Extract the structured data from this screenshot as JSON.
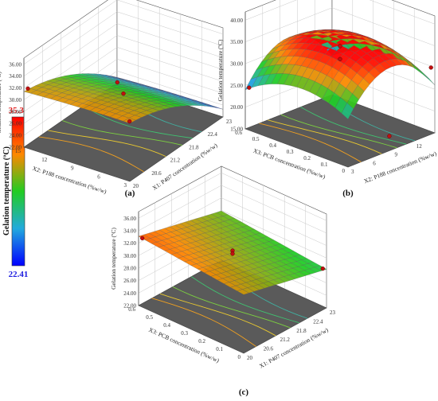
{
  "colorbar": {
    "title": "Gelation temperature (ºC)",
    "max_label": "35.33",
    "min_label": "22.41",
    "max_color": "#ff1a1a",
    "min_color": "#1a1aff"
  },
  "chart_data": [
    {
      "panel": "(a)",
      "type": "surface",
      "zlabel": "Gelation temperature (ºC)",
      "xlabel": "X1: P407 concentration (%w/w)",
      "ylabel": "X2: P188 concentration (%w/w)",
      "zticks": [
        "22.00",
        "24.00",
        "26.00",
        "28.00",
        "30.00",
        "32.00",
        "34.00",
        "36.00"
      ],
      "xticks": [
        "20",
        "20.6",
        "21.2",
        "21.8",
        "22.4",
        "23"
      ],
      "yticks": [
        "3",
        "6",
        "9",
        "12",
        "15"
      ],
      "zlim": [
        22,
        36
      ],
      "xlim": [
        20,
        23
      ],
      "ylim": [
        3,
        15
      ],
      "design_points": [
        {
          "x1": 20,
          "x2": 15,
          "temp": 31.8
        },
        {
          "x1": 20,
          "x2": 3,
          "temp": 31.8
        },
        {
          "x1": 23,
          "x2": 15,
          "temp": 22.4
        },
        {
          "x1": 21.5,
          "x2": 9,
          "temp": 28.5
        }
      ]
    },
    {
      "panel": "(b)",
      "type": "surface",
      "zlabel": "Gelation temperature (ºC)",
      "xlabel": "X2: P188 concentration (%w/w)",
      "ylabel": "X3: PCB concentration (%w/w)",
      "zticks": [
        "15.00",
        "20.00",
        "25.00",
        "30.00",
        "35.00",
        "40.00"
      ],
      "xticks": [
        "3",
        "6",
        "9",
        "12",
        "15"
      ],
      "yticks": [
        "0",
        "0.1",
        "0.2",
        "0.3",
        "0.4",
        "0.5",
        "0.6"
      ],
      "zlim": [
        15,
        40
      ],
      "xlim": [
        3,
        15
      ],
      "ylim": [
        0,
        0.6
      ],
      "design_points": [
        {
          "x2": 9,
          "x3": 0.3,
          "temp": 34.5
        },
        {
          "x2": 9,
          "x3": 0.3,
          "temp": 31.5
        },
        {
          "x2": 3,
          "x3": 0.6,
          "temp": 24.5
        },
        {
          "x2": 15,
          "x3": 0,
          "temp": 30.0
        },
        {
          "x2": 9,
          "x3": 0,
          "temp": 18.0
        }
      ]
    },
    {
      "panel": "(c)",
      "type": "surface",
      "zlabel": "Gelation temperature (ºC)",
      "xlabel": "X1: P407 concentration (%w/w)",
      "ylabel": "X3: PCB concentration (%w/w)",
      "zticks": [
        "22.00",
        "24.00",
        "26.00",
        "28.00",
        "30.00",
        "32.00",
        "34.00",
        "36.00"
      ],
      "xticks": [
        "20",
        "20.6",
        "21.2",
        "21.8",
        "22.4",
        "23"
      ],
      "yticks": [
        "0",
        "0.1",
        "0.2",
        "0.3",
        "0.4",
        "0.5",
        "0.6"
      ],
      "zlim": [
        22,
        36
      ],
      "xlim": [
        20,
        23
      ],
      "ylim": [
        0,
        0.6
      ],
      "design_points": [
        {
          "x1": 20,
          "x3": 0.6,
          "temp": 32.8
        },
        {
          "x1": 21.5,
          "x3": 0.3,
          "temp": 31.0
        },
        {
          "x1": 21.5,
          "x3": 0.3,
          "temp": 30.5
        },
        {
          "x1": 23,
          "x3": 0,
          "temp": 28.3
        }
      ]
    }
  ]
}
